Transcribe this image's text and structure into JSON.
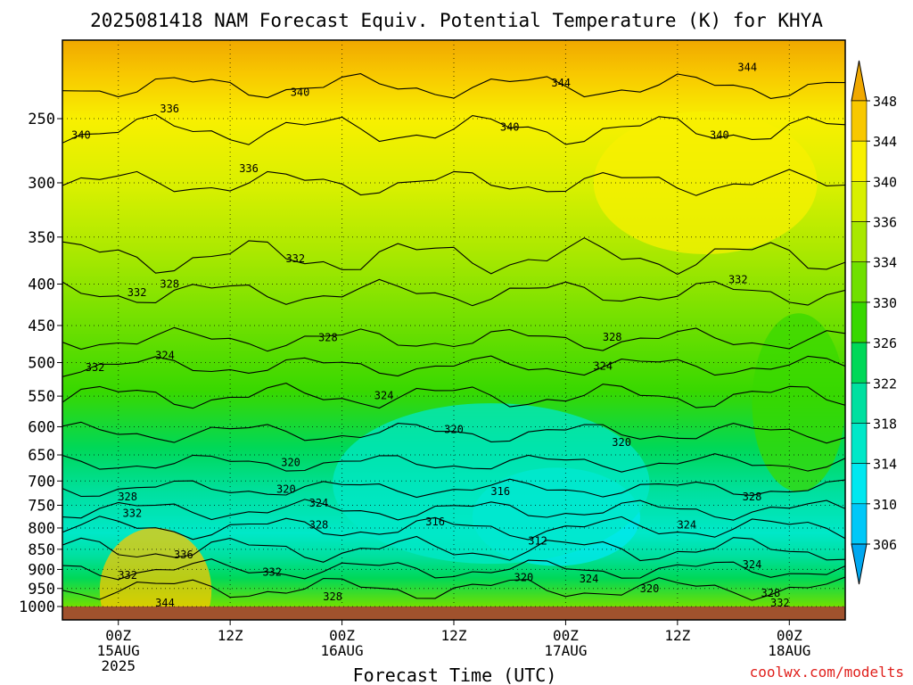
{
  "chart_data": {
    "type": "heatmap",
    "title": "2025081418 NAM Forecast Equiv. Potential Temperature (K) for KHYA",
    "xlabel": "Forecast Time (UTC)",
    "ylabel": "",
    "credit": "coolwx.com/modelts",
    "x_ticks": [
      {
        "hour": 6,
        "label": "00Z",
        "sub": "15AUG",
        "sub2": "2025"
      },
      {
        "hour": 18,
        "label": "12Z",
        "sub": "",
        "sub2": ""
      },
      {
        "hour": 30,
        "label": "00Z",
        "sub": "16AUG",
        "sub2": ""
      },
      {
        "hour": 42,
        "label": "12Z",
        "sub": "",
        "sub2": ""
      },
      {
        "hour": 54,
        "label": "00Z",
        "sub": "17AUG",
        "sub2": ""
      },
      {
        "hour": 66,
        "label": "12Z",
        "sub": "",
        "sub2": ""
      },
      {
        "hour": 78,
        "label": "00Z",
        "sub": "18AUG",
        "sub2": ""
      }
    ],
    "xlim": [
      0,
      84
    ],
    "y_ticks": [
      250,
      300,
      350,
      400,
      450,
      500,
      550,
      600,
      650,
      700,
      750,
      800,
      850,
      900,
      950,
      1000
    ],
    "ylim": [
      1000,
      200
    ],
    "y_scale": "log",
    "grid": true,
    "colorbar": {
      "levels": [
        348,
        344,
        340,
        336,
        334,
        330,
        326,
        322,
        318,
        314,
        310,
        306
      ],
      "colors": [
        "#f0a800",
        "#f8c800",
        "#f8f000",
        "#d8f000",
        "#a8e800",
        "#70e000",
        "#38d800",
        "#00d858",
        "#00e0a0",
        "#00e8c8",
        "#00e8f0",
        "#00c8f8"
      ]
    },
    "contour_labels": [
      {
        "x": 25.5,
        "p": 232,
        "t": "340"
      },
      {
        "x": 11.5,
        "p": 243,
        "t": "336"
      },
      {
        "x": 2,
        "p": 262,
        "t": "340"
      },
      {
        "x": 20,
        "p": 288,
        "t": "336"
      },
      {
        "x": 48,
        "p": 256,
        "t": "340"
      },
      {
        "x": 53.5,
        "p": 226,
        "t": "344"
      },
      {
        "x": 73.5,
        "p": 216,
        "t": "344"
      },
      {
        "x": 70.5,
        "p": 262,
        "t": "340"
      },
      {
        "x": 25,
        "p": 372,
        "t": "332"
      },
      {
        "x": 72.5,
        "p": 395,
        "t": "332"
      },
      {
        "x": 8,
        "p": 410,
        "t": "332"
      },
      {
        "x": 11.5,
        "p": 400,
        "t": "328"
      },
      {
        "x": 28.5,
        "p": 466,
        "t": "328"
      },
      {
        "x": 59,
        "p": 465,
        "t": "328"
      },
      {
        "x": 11,
        "p": 490,
        "t": "324"
      },
      {
        "x": 3.5,
        "p": 507,
        "t": "332"
      },
      {
        "x": 58,
        "p": 505,
        "t": "324"
      },
      {
        "x": 34.5,
        "p": 549,
        "t": "324"
      },
      {
        "x": 42,
        "p": 605,
        "t": "320"
      },
      {
        "x": 60,
        "p": 627,
        "t": "320"
      },
      {
        "x": 24.5,
        "p": 664,
        "t": "320"
      },
      {
        "x": 24,
        "p": 717,
        "t": "320"
      },
      {
        "x": 27.5,
        "p": 745,
        "t": "324"
      },
      {
        "x": 47,
        "p": 721,
        "t": "316"
      },
      {
        "x": 40,
        "p": 786,
        "t": "316"
      },
      {
        "x": 51,
        "p": 830,
        "t": "312"
      },
      {
        "x": 7,
        "p": 732,
        "t": "328"
      },
      {
        "x": 7.5,
        "p": 767,
        "t": "332"
      },
      {
        "x": 27.5,
        "p": 793,
        "t": "328"
      },
      {
        "x": 74,
        "p": 732,
        "t": "328"
      },
      {
        "x": 67,
        "p": 793,
        "t": "324"
      },
      {
        "x": 13,
        "p": 863,
        "t": "336"
      },
      {
        "x": 7,
        "p": 915,
        "t": "332"
      },
      {
        "x": 22.5,
        "p": 907,
        "t": "332"
      },
      {
        "x": 49.5,
        "p": 921,
        "t": "320"
      },
      {
        "x": 56.5,
        "p": 925,
        "t": "324"
      },
      {
        "x": 63,
        "p": 951,
        "t": "320"
      },
      {
        "x": 74,
        "p": 888,
        "t": "324"
      },
      {
        "x": 76,
        "p": 963,
        "t": "328"
      },
      {
        "x": 77,
        "p": 996,
        "t": "332"
      },
      {
        "x": 29,
        "p": 973,
        "t": "328"
      },
      {
        "x": 11,
        "p": 1002,
        "t": "344"
      }
    ]
  }
}
